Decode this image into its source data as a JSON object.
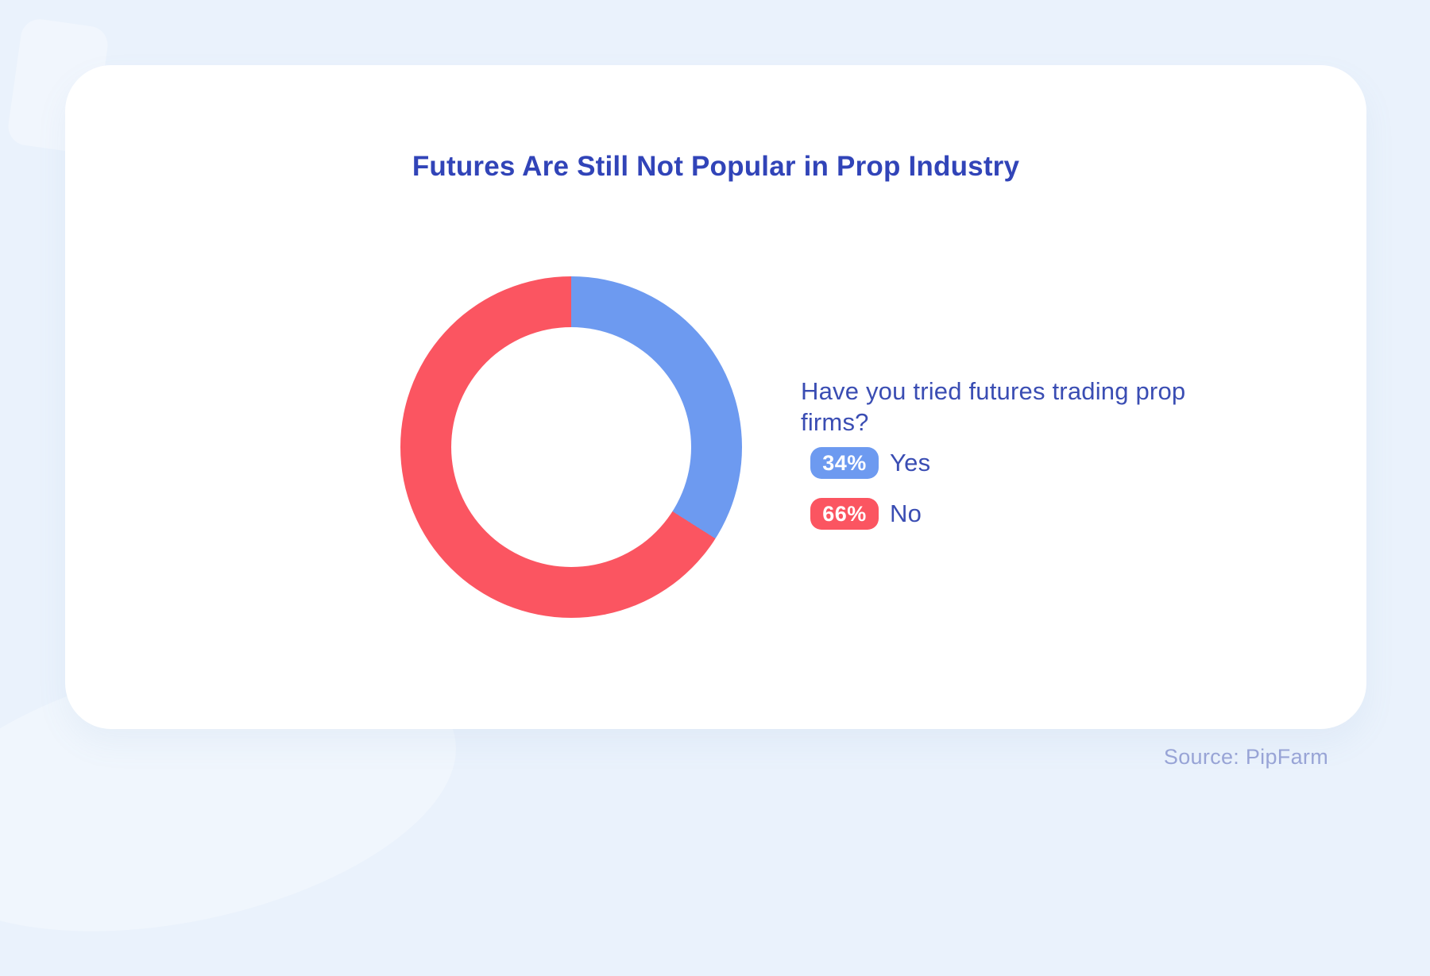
{
  "theme": {
    "page_bg": "#eaf2fc",
    "card_bg": "#ffffff",
    "title_color": "#3144b8",
    "text_color": "#3a4db3",
    "badge_text": "#ffffff",
    "yes_color": "#6d9af0",
    "no_color": "#fb5561",
    "source_color": "#98a4d6"
  },
  "card": {
    "title": "Futures Are Still Not Popular in Prop Industry"
  },
  "legend": {
    "question": "Have you tried futures trading prop firms?",
    "items": [
      {
        "label": "Yes",
        "value_text": "34%",
        "color": "#6d9af0"
      },
      {
        "label": "No",
        "value_text": "66%",
        "color": "#fb5561"
      }
    ]
  },
  "footer": {
    "source": "Source: PipFarm"
  },
  "chart_data": {
    "type": "pie",
    "donut": true,
    "title": "Futures Are Still Not Popular in Prop Industry",
    "question": "Have you tried futures trading prop firms?",
    "labels": [
      "Yes",
      "No"
    ],
    "values": [
      34,
      66
    ],
    "colors": [
      "#6d9af0",
      "#fb5561"
    ],
    "start_angle_deg": 0,
    "direction": "clockwise",
    "legend_position": "right",
    "source": "Source: PipFarm"
  }
}
